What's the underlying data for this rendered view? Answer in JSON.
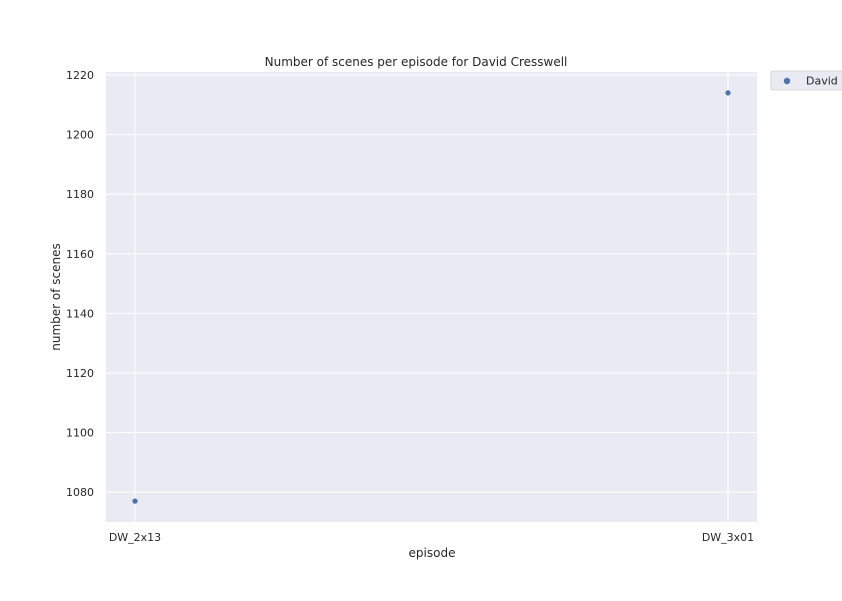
{
  "chart_data": {
    "type": "scatter",
    "title": "Number of scenes per episode for David Cresswell",
    "xlabel": "episode",
    "ylabel": "number of scenes",
    "categories": [
      "DW_2x13",
      "DW_3x01"
    ],
    "series": [
      {
        "name": "David",
        "values": [
          1077,
          1214
        ],
        "color": "#4c72b0"
      }
    ],
    "ylim": [
      1070,
      1221
    ],
    "yticks": [
      1080,
      1100,
      1120,
      1140,
      1160,
      1180,
      1200,
      1220
    ],
    "grid": true,
    "legend": "outside-top-right"
  },
  "colors": {
    "plot_background": "#eaeaf2",
    "grid": "#ffffff",
    "marker": "#4c72b0"
  }
}
